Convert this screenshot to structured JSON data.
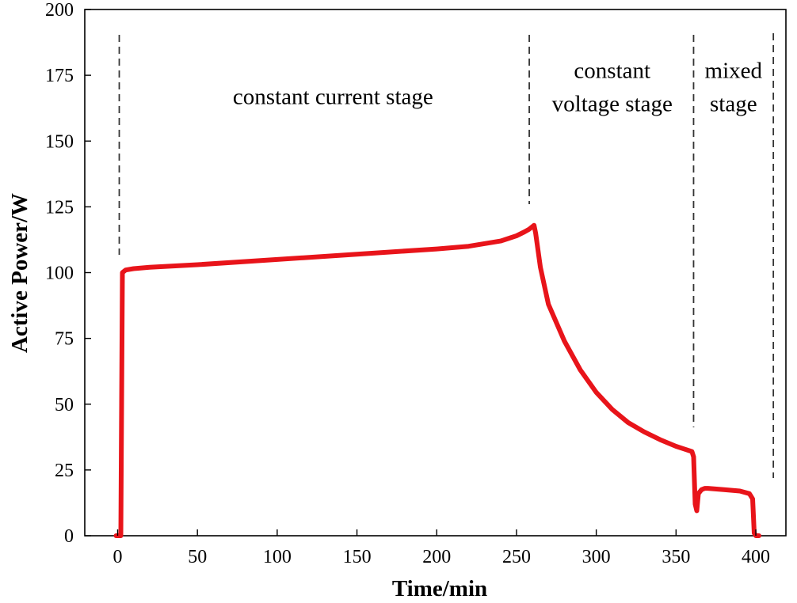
{
  "chart_data": {
    "type": "line",
    "title": "",
    "xlabel": "Time/min",
    "ylabel": "Active Power/W",
    "xlim": [
      -20,
      415
    ],
    "ylim": [
      0,
      200
    ],
    "x_ticks": [
      0,
      50,
      100,
      150,
      200,
      250,
      300,
      350,
      400
    ],
    "y_ticks": [
      0,
      25,
      50,
      75,
      100,
      125,
      150,
      175,
      200
    ],
    "grid": false,
    "legend": "none",
    "line_color": "#e8141a",
    "series": [
      {
        "x": [
          -1,
          1,
          2,
          3,
          5,
          10,
          20,
          50,
          100,
          150,
          200,
          220,
          240,
          250,
          255,
          258,
          260,
          261,
          262,
          265,
          270,
          280,
          290,
          300,
          310,
          320,
          330,
          340,
          350,
          355,
          360,
          361,
          362,
          363,
          364,
          366,
          368,
          370,
          380,
          390,
          396,
          397,
          398,
          399,
          400,
          402
        ],
        "y": [
          0,
          0,
          0,
          100,
          101,
          101.5,
          102,
          103,
          105,
          107,
          109,
          110,
          112,
          114,
          115.5,
          116.5,
          117.5,
          118,
          115,
          102,
          88,
          74,
          63,
          54.5,
          48,
          43,
          39.5,
          36.5,
          34,
          33,
          32,
          30,
          12,
          9.5,
          16,
          17.5,
          18,
          18,
          17.5,
          17,
          16,
          15,
          14,
          1,
          0,
          0
        ]
      }
    ],
    "dividers_x": [
      1,
      258,
      361,
      411
    ],
    "annotations": [
      {
        "lines": [
          "constant current stage"
        ],
        "x": 135,
        "y": 164
      },
      {
        "lines": [
          "constant",
          "voltage stage"
        ],
        "x": 310,
        "y": 174
      },
      {
        "lines": [
          "mixed",
          "stage"
        ],
        "x": 386,
        "y": 174
      }
    ]
  }
}
